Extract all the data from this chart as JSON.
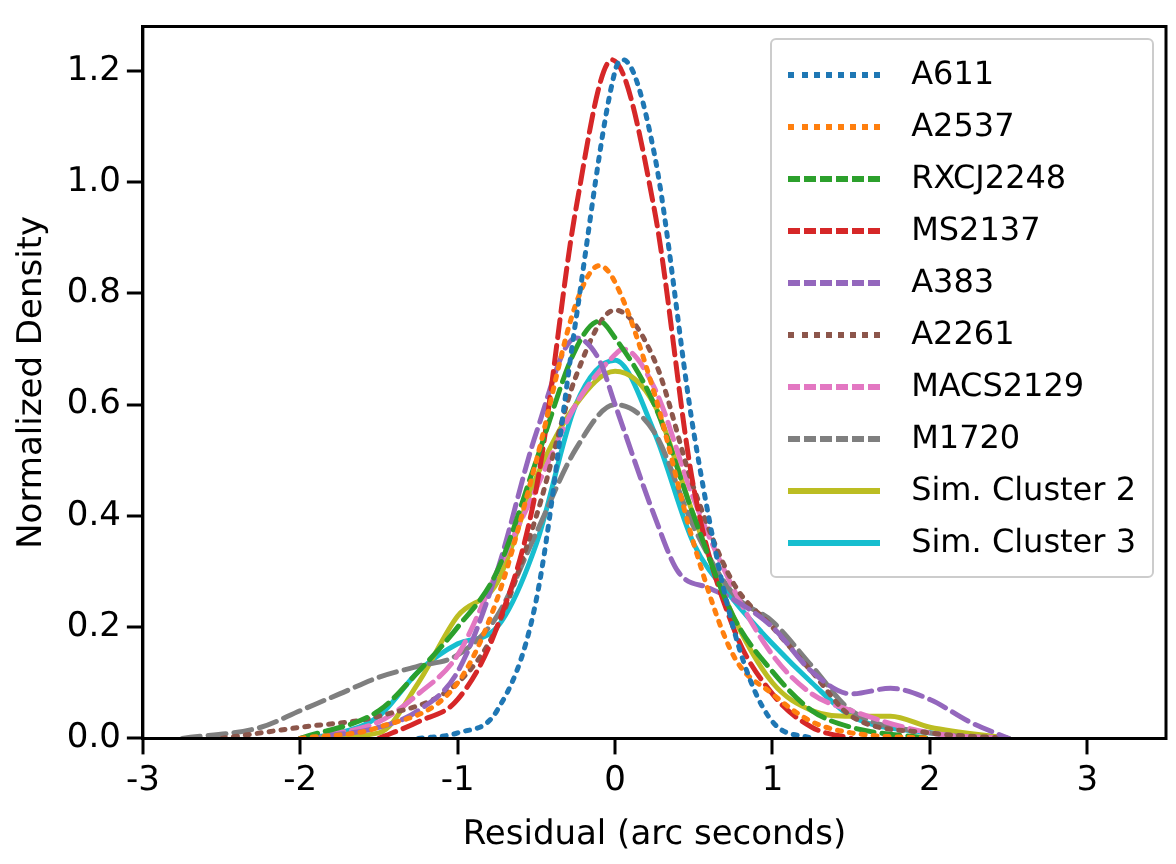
{
  "chart_data": {
    "type": "line",
    "xlabel": "Residual (arc seconds)",
    "ylabel": "Normalized Density",
    "xlim": [
      -3,
      3.5
    ],
    "xticks": [
      -3,
      -2,
      -1,
      0,
      1,
      2,
      3
    ],
    "ylim": [
      0,
      1.28
    ],
    "yticks": [
      {
        "value": 0,
        "label": "0.0"
      },
      0.2,
      0.4,
      0.6,
      0.8,
      {
        "value": 1,
        "label": "1.0"
      },
      1.2
    ],
    "grid": false,
    "legend": "top right",
    "marker": "none",
    "series": [
      {
        "name": "A611",
        "color": "#1f77b4",
        "line_style": "dotted",
        "x": [
          -1.25,
          -1,
          -0.75,
          -0.5,
          -0.25,
          0,
          0.05,
          0.25,
          0.5,
          0.75,
          1,
          1.25
        ],
        "values": [
          0,
          0.01,
          0.05,
          0.25,
          0.75,
          1.2,
          1.22,
          1.05,
          0.55,
          0.2,
          0.03,
          0
        ]
      },
      {
        "name": "A2537",
        "color": "#ff7f0e",
        "line_style": "dotted",
        "x": [
          -2,
          -1.5,
          -1,
          -0.75,
          -0.5,
          -0.25,
          -0.1,
          0,
          0.25,
          0.5,
          0.75,
          1,
          1.25,
          1.5,
          2
        ],
        "values": [
          0,
          0.02,
          0.1,
          0.25,
          0.5,
          0.78,
          0.85,
          0.82,
          0.62,
          0.35,
          0.15,
          0.08,
          0.03,
          0.01,
          0
        ]
      },
      {
        "name": "RXCJ2248",
        "color": "#2ca02c",
        "line_style": "dashed",
        "x": [
          -2,
          -1.5,
          -1.25,
          -1,
          -0.75,
          -0.5,
          -0.25,
          -0.1,
          0,
          0.25,
          0.5,
          0.75,
          1,
          1.25,
          1.5,
          2
        ],
        "values": [
          0,
          0.05,
          0.12,
          0.2,
          0.3,
          0.5,
          0.7,
          0.75,
          0.72,
          0.6,
          0.4,
          0.22,
          0.12,
          0.05,
          0.02,
          0
        ]
      },
      {
        "name": "MS2137",
        "color": "#d62728",
        "line_style": "dashed",
        "x": [
          -1.5,
          -1.25,
          -1,
          -0.75,
          -0.5,
          -0.25,
          -0.02,
          0.25,
          0.5,
          0.75,
          1,
          1.25,
          1.5
        ],
        "values": [
          0,
          0.03,
          0.07,
          0.2,
          0.45,
          0.95,
          1.22,
          0.95,
          0.45,
          0.2,
          0.08,
          0.02,
          0
        ]
      },
      {
        "name": "A383",
        "color": "#9467bd",
        "line_style": "dashed",
        "x": [
          -2,
          -1.5,
          -1.25,
          -1,
          -0.75,
          -0.5,
          -0.25,
          -0.1,
          0,
          0.25,
          0.4,
          0.6,
          0.75,
          1,
          1.25,
          1.5,
          1.75,
          2,
          2.25,
          2.5
        ],
        "values": [
          0,
          0.02,
          0.05,
          0.12,
          0.3,
          0.55,
          0.72,
          0.68,
          0.6,
          0.4,
          0.3,
          0.27,
          0.25,
          0.2,
          0.12,
          0.08,
          0.09,
          0.07,
          0.03,
          0
        ]
      },
      {
        "name": "A2261",
        "color": "#8c564b",
        "line_style": "dotted",
        "x": [
          -2.5,
          -2,
          -1.5,
          -1,
          -0.75,
          -0.5,
          -0.25,
          0,
          0.25,
          0.5,
          0.75,
          1,
          1.25,
          1.5,
          2,
          2.5
        ],
        "values": [
          0,
          0.02,
          0.04,
          0.1,
          0.2,
          0.4,
          0.65,
          0.77,
          0.68,
          0.45,
          0.28,
          0.2,
          0.12,
          0.04,
          0.01,
          0
        ]
      },
      {
        "name": "MACS2129",
        "color": "#e377c2",
        "line_style": "dashed",
        "x": [
          -2,
          -1.5,
          -1.25,
          -1,
          -0.75,
          -0.5,
          -0.25,
          0,
          0.05,
          0.25,
          0.5,
          0.75,
          1,
          1.25,
          1.5,
          2,
          2.5
        ],
        "values": [
          0,
          0.03,
          0.08,
          0.15,
          0.3,
          0.45,
          0.6,
          0.69,
          0.7,
          0.63,
          0.43,
          0.27,
          0.15,
          0.08,
          0.05,
          0.01,
          0
        ]
      },
      {
        "name": "M1720",
        "color": "#7f7f7f",
        "line_style": "dashed",
        "x": [
          -2.75,
          -2.25,
          -2,
          -1.75,
          -1.5,
          -1.25,
          -1,
          -0.75,
          -0.5,
          -0.25,
          0,
          0.25,
          0.5,
          0.75,
          1,
          1.25,
          1.5,
          2,
          2.5
        ],
        "values": [
          0,
          0.02,
          0.05,
          0.08,
          0.11,
          0.13,
          0.15,
          0.22,
          0.37,
          0.52,
          0.6,
          0.55,
          0.38,
          0.26,
          0.21,
          0.13,
          0.05,
          0.01,
          0
        ]
      },
      {
        "name": "Sim. Cluster 2",
        "color": "#bcbd22",
        "line_style": "solid",
        "x": [
          -2,
          -1.5,
          -1.25,
          -1,
          -0.75,
          -0.5,
          -0.25,
          0,
          0.25,
          0.5,
          0.75,
          1,
          1.25,
          1.5,
          1.75,
          2,
          2.5
        ],
        "values": [
          0,
          0.01,
          0.1,
          0.22,
          0.28,
          0.47,
          0.6,
          0.66,
          0.6,
          0.4,
          0.22,
          0.1,
          0.05,
          0.04,
          0.04,
          0.02,
          0
        ]
      },
      {
        "name": "Sim. Cluster 3",
        "color": "#17becf",
        "line_style": "solid",
        "x": [
          -2,
          -1.75,
          -1.5,
          -1.25,
          -1,
          -0.75,
          -0.5,
          -0.25,
          0,
          0.25,
          0.5,
          0.75,
          1,
          1.25,
          1.5,
          2,
          2.5
        ],
        "values": [
          0,
          0.01,
          0.04,
          0.12,
          0.17,
          0.2,
          0.35,
          0.6,
          0.68,
          0.55,
          0.35,
          0.25,
          0.17,
          0.1,
          0.04,
          0.01,
          0
        ]
      }
    ]
  }
}
